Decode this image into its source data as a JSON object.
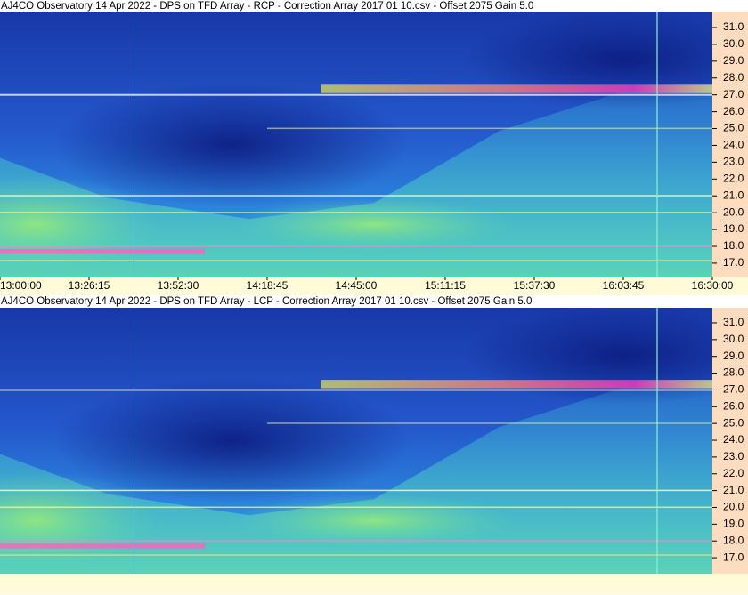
{
  "chart_data": [
    {
      "type": "spectrogram",
      "title": "AJ4CO Observatory 14 Apr 2022  -  DPS on TFD Array  -  RCP  -  Correction Array 2017 01 10.csv  -  Offset 2075  Gain 5.0",
      "categories": [
        "13:00:00",
        "13:26:15",
        "13:52:30",
        "14:18:45",
        "14:45:00",
        "15:11:15",
        "15:37:30",
        "16:03:45",
        "16:30:00"
      ],
      "ylim": [
        16.15,
        31.95
      ],
      "yticks": [
        {
          "value": 31,
          "label": "31.0"
        },
        {
          "value": 30,
          "label": "30.0"
        },
        {
          "value": 29,
          "label": "29.0"
        },
        {
          "value": 28,
          "label": "28.0"
        },
        {
          "value": 27,
          "label": "27.0"
        },
        {
          "value": 26,
          "label": "26.0"
        },
        {
          "value": 25,
          "label": "25.0"
        },
        {
          "value": 24,
          "label": "24.0"
        },
        {
          "value": 23,
          "label": "23.0"
        },
        {
          "value": 22,
          "label": "22.0"
        },
        {
          "value": 21,
          "label": "21.0"
        },
        {
          "value": 20,
          "label": "20.0"
        },
        {
          "value": 19,
          "label": "19.0"
        },
        {
          "value": 18,
          "label": "18.0"
        },
        {
          "value": 17,
          "label": "17.0"
        }
      ]
    },
    {
      "type": "spectrogram",
      "title": "AJ4CO Observatory 14 Apr 2022  -  DPS on TFD Array  -  LCP  -  Correction Array 2017 01 10.csv  -  Offset 2075  Gain 5.0",
      "ylim": [
        16.05,
        31.9
      ],
      "yticks": [
        {
          "value": 31,
          "label": "31.0"
        },
        {
          "value": 30,
          "label": "30.0"
        },
        {
          "value": 29,
          "label": "29.0"
        },
        {
          "value": 28,
          "label": "28.0"
        },
        {
          "value": 27,
          "label": "27.0"
        },
        {
          "value": 26,
          "label": "26.0"
        },
        {
          "value": 25,
          "label": "25.0"
        },
        {
          "value": 24,
          "label": "24.0"
        },
        {
          "value": 23,
          "label": "23.0"
        },
        {
          "value": 22,
          "label": "22.0"
        },
        {
          "value": 21,
          "label": "21.0"
        },
        {
          "value": 20,
          "label": "20.0"
        },
        {
          "value": 19,
          "label": "19.0"
        },
        {
          "value": 18,
          "label": "18.0"
        },
        {
          "value": 17,
          "label": "17.0"
        }
      ]
    }
  ]
}
